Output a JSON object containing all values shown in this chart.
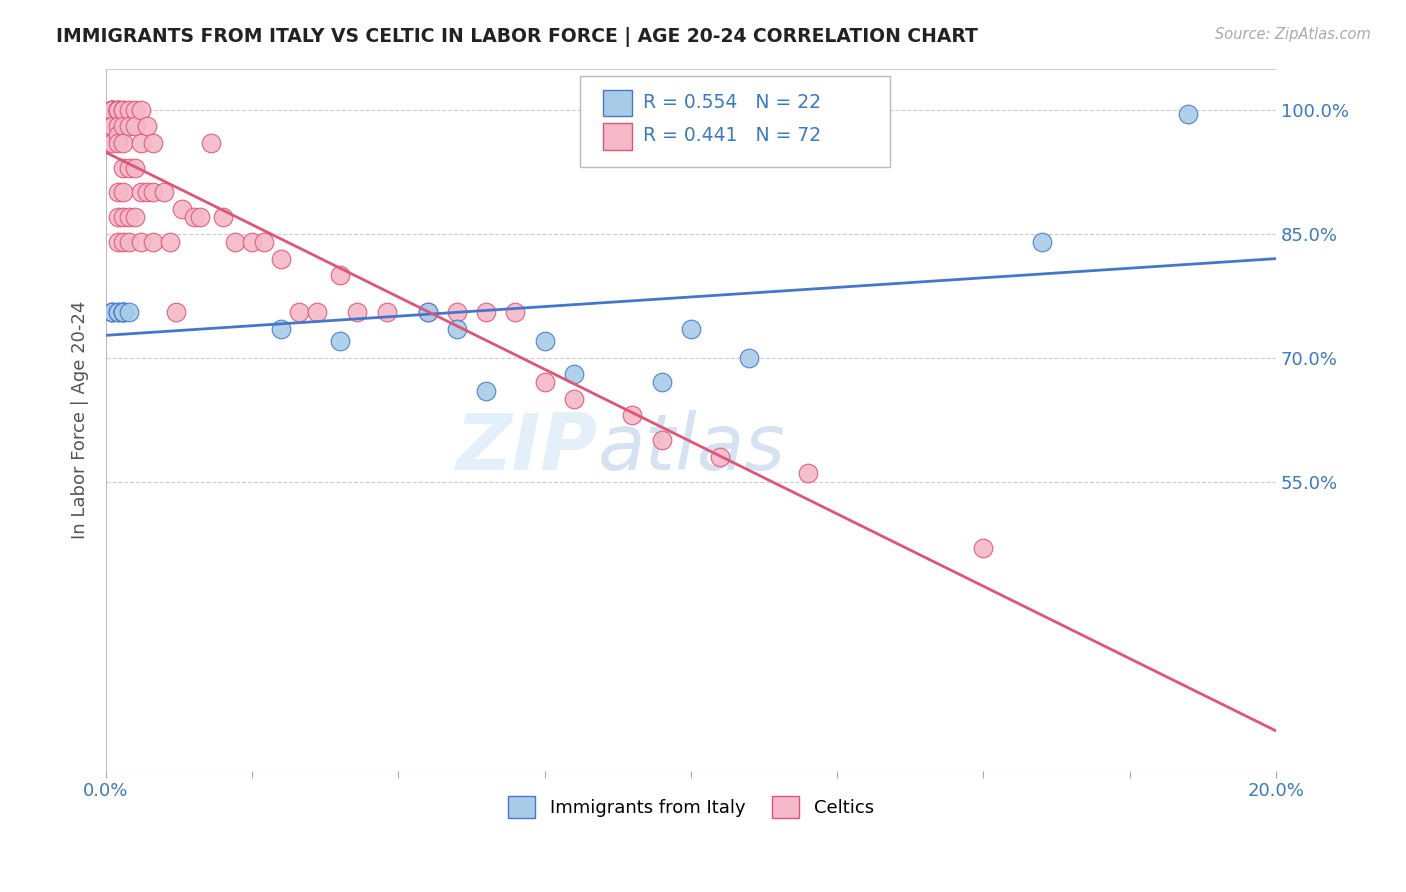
{
  "title": "IMMIGRANTS FROM ITALY VS CELTIC IN LABOR FORCE | AGE 20-24 CORRELATION CHART",
  "source": "Source: ZipAtlas.com",
  "ylabel": "In Labor Force | Age 20-24",
  "x_min": 0.0,
  "x_max": 0.2,
  "y_min": 0.2,
  "y_max": 1.05,
  "x_ticks": [
    0.0,
    0.025,
    0.05,
    0.075,
    0.1,
    0.125,
    0.15,
    0.175,
    0.2
  ],
  "y_ticks_right": [
    0.55,
    0.7,
    0.85,
    1.0
  ],
  "y_tick_labels_right": [
    "55.0%",
    "70.0%",
    "85.0%",
    "100.0%"
  ],
  "italy_color": "#a8cce8",
  "celtic_color": "#f4b8c8",
  "italy_R": 0.554,
  "italy_N": 22,
  "celtic_R": 0.441,
  "celtic_N": 72,
  "italy_line_color": "#4477cc",
  "celtic_line_color": "#dd5577",
  "legend_label_italy": "Immigrants from Italy",
  "legend_label_celtics": "Celtics",
  "watermark_zip": "ZIP",
  "watermark_atlas": "atlas",
  "italy_x": [
    0.001,
    0.001,
    0.001,
    0.002,
    0.002,
    0.003,
    0.003,
    0.003,
    0.003,
    0.004,
    0.03,
    0.04,
    0.055,
    0.06,
    0.065,
    0.075,
    0.08,
    0.095,
    0.1,
    0.11,
    0.16,
    0.185
  ],
  "italy_y": [
    0.755,
    0.755,
    0.755,
    0.755,
    0.755,
    0.755,
    0.755,
    0.755,
    0.755,
    0.755,
    0.735,
    0.72,
    0.755,
    0.735,
    0.66,
    0.72,
    0.68,
    0.67,
    0.735,
    0.7,
    0.84,
    0.995
  ],
  "celtic_x": [
    0.001,
    0.001,
    0.001,
    0.001,
    0.001,
    0.001,
    0.001,
    0.001,
    0.002,
    0.002,
    0.002,
    0.002,
    0.002,
    0.002,
    0.002,
    0.002,
    0.002,
    0.002,
    0.003,
    0.003,
    0.003,
    0.003,
    0.003,
    0.003,
    0.003,
    0.003,
    0.004,
    0.004,
    0.004,
    0.004,
    0.004,
    0.005,
    0.005,
    0.005,
    0.005,
    0.006,
    0.006,
    0.006,
    0.006,
    0.007,
    0.007,
    0.008,
    0.008,
    0.008,
    0.01,
    0.011,
    0.012,
    0.013,
    0.015,
    0.016,
    0.018,
    0.02,
    0.022,
    0.025,
    0.027,
    0.03,
    0.033,
    0.036,
    0.04,
    0.043,
    0.048,
    0.055,
    0.06,
    0.065,
    0.07,
    0.075,
    0.08,
    0.09,
    0.095,
    0.105,
    0.12,
    0.15
  ],
  "celtic_y": [
    1.0,
    1.0,
    1.0,
    1.0,
    1.0,
    1.0,
    0.98,
    0.96,
    1.0,
    1.0,
    1.0,
    1.0,
    0.98,
    0.97,
    0.96,
    0.9,
    0.87,
    0.84,
    1.0,
    1.0,
    0.98,
    0.96,
    0.93,
    0.9,
    0.87,
    0.84,
    1.0,
    0.98,
    0.93,
    0.87,
    0.84,
    1.0,
    0.98,
    0.93,
    0.87,
    1.0,
    0.96,
    0.9,
    0.84,
    0.98,
    0.9,
    0.96,
    0.9,
    0.84,
    0.9,
    0.84,
    0.755,
    0.88,
    0.87,
    0.87,
    0.96,
    0.87,
    0.84,
    0.84,
    0.84,
    0.82,
    0.755,
    0.755,
    0.8,
    0.755,
    0.755,
    0.755,
    0.755,
    0.755,
    0.755,
    0.67,
    0.65,
    0.63,
    0.6,
    0.58,
    0.56,
    0.47
  ]
}
